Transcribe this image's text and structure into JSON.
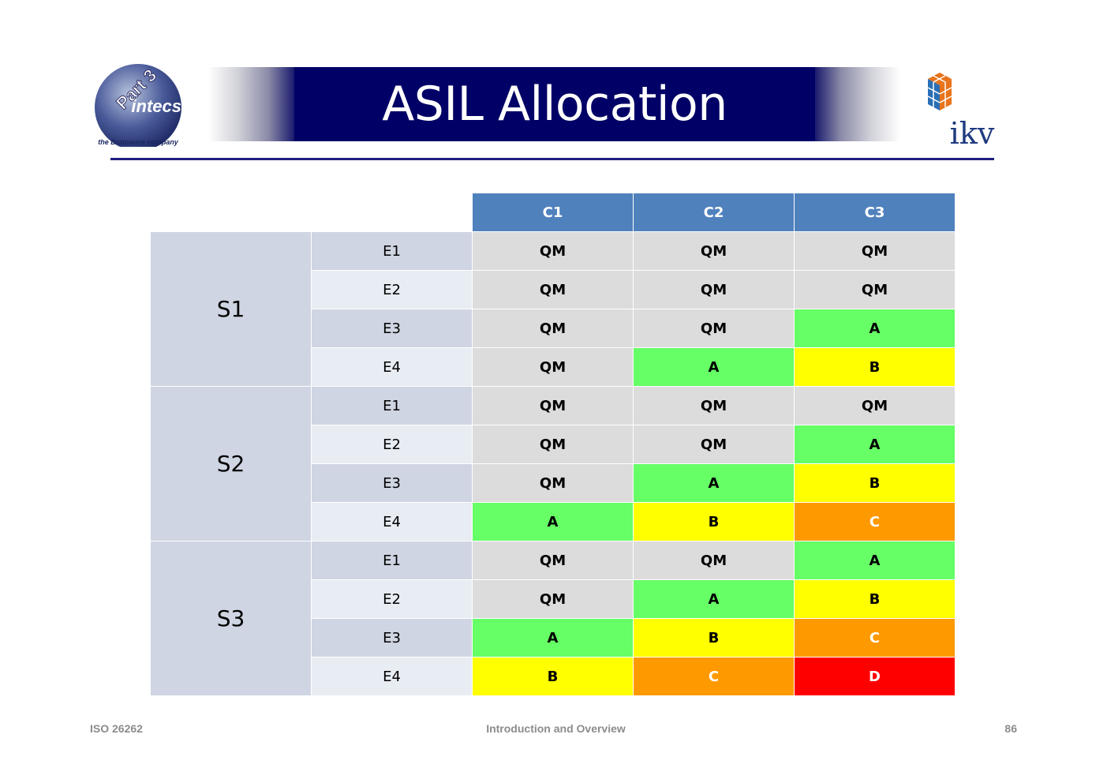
{
  "header": {
    "title": "ASIL Allocation",
    "left_logo": {
      "word": "intecs",
      "badge": "Part 3",
      "tagline": "the Brainware company"
    },
    "right_logo": {
      "word": "ikv"
    }
  },
  "table": {
    "columns": [
      "C1",
      "C2",
      "C3"
    ],
    "groups": [
      {
        "label": "S1",
        "rows": [
          {
            "label": "E1",
            "values": [
              "QM",
              "QM",
              "QM"
            ]
          },
          {
            "label": "E2",
            "values": [
              "QM",
              "QM",
              "QM"
            ]
          },
          {
            "label": "E3",
            "values": [
              "QM",
              "QM",
              "A"
            ]
          },
          {
            "label": "E4",
            "values": [
              "QM",
              "A",
              "B"
            ]
          }
        ]
      },
      {
        "label": "S2",
        "rows": [
          {
            "label": "E1",
            "values": [
              "QM",
              "QM",
              "QM"
            ]
          },
          {
            "label": "E2",
            "values": [
              "QM",
              "QM",
              "A"
            ]
          },
          {
            "label": "E3",
            "values": [
              "QM",
              "A",
              "B"
            ]
          },
          {
            "label": "E4",
            "values": [
              "A",
              "B",
              "C"
            ]
          }
        ]
      },
      {
        "label": "S3",
        "rows": [
          {
            "label": "E1",
            "values": [
              "QM",
              "QM",
              "A"
            ]
          },
          {
            "label": "E2",
            "values": [
              "QM",
              "A",
              "B"
            ]
          },
          {
            "label": "E3",
            "values": [
              "A",
              "B",
              "C"
            ]
          },
          {
            "label": "E4",
            "values": [
              "B",
              "C",
              "D"
            ]
          }
        ]
      }
    ],
    "colors": {
      "QM": "#dcdcdc",
      "A": "#66ff66",
      "B": "#ffff00",
      "C": "#ff9900",
      "D": "#ff0000",
      "header": "#4f81bd",
      "banner": "#000066"
    }
  },
  "footer": {
    "left": "ISO 26262",
    "center": "Introduction and Overview",
    "right": "86"
  }
}
